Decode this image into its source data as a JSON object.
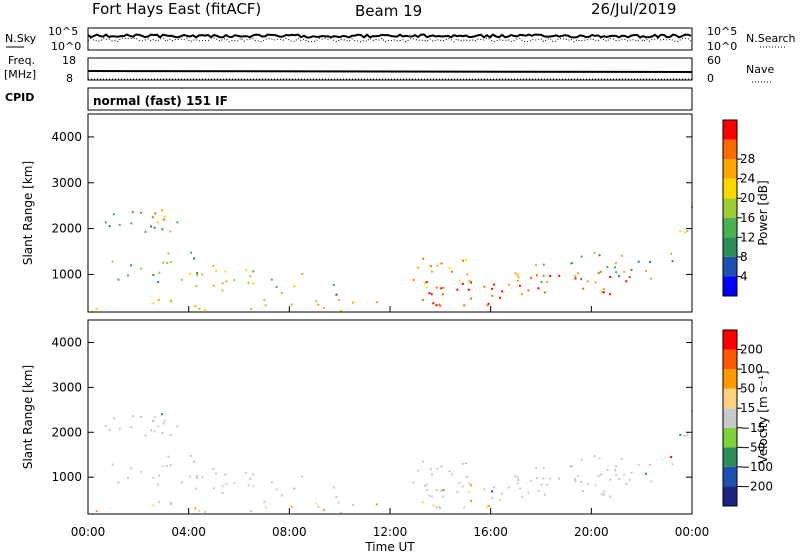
{
  "header": {
    "radar": "Fort Hays East (fitACF)",
    "beam": "Beam 19",
    "date": "26/Jul/2019"
  },
  "top_panel": {
    "left_label": "N.Sky",
    "right_label": "N.Search",
    "left_ticks": [
      "10^5",
      "10^0"
    ],
    "right_ticks": [
      "10^5",
      "10^0"
    ]
  },
  "freq_panel": {
    "left_label_1": "Freq.",
    "left_label_2": "[MHz]",
    "right_label": "Nave",
    "left_ticks": [
      "18",
      "8"
    ],
    "right_ticks": [
      "60",
      "0"
    ],
    "cpid_label": "CPID",
    "mode_text": "normal (fast) 151 IF"
  },
  "chart_data": [
    {
      "type": "heatmap",
      "name_in_figure": "Power",
      "ylabel": "Slant Range [km]",
      "xlabel": "Time UT",
      "xlim": [
        "00:00",
        "00:00"
      ],
      "ylim": [
        180,
        4500
      ],
      "y_ticks": [
        1000,
        2000,
        3000,
        4000
      ],
      "x_ticks": [
        "00:00",
        "04:00",
        "08:00",
        "12:00",
        "16:00",
        "20:00",
        "00:00"
      ],
      "colorbar": {
        "label": "Power [dB]",
        "ticks": [
          4,
          8,
          12,
          16,
          20,
          24,
          28
        ],
        "colors": [
          "#0000ff",
          "#1f4fb0",
          "#2e8b57",
          "#4caf50",
          "#9acd32",
          "#ffd700",
          "#ffa500",
          "#ff6a00",
          "#ff0000"
        ]
      }
    },
    {
      "type": "heatmap",
      "name_in_figure": "Velocity",
      "ylabel": "Slant Range [km]",
      "xlabel": "Time UT",
      "xlim": [
        "00:00",
        "00:00"
      ],
      "ylim": [
        180,
        4500
      ],
      "y_ticks": [
        1000,
        2000,
        3000,
        4000
      ],
      "x_ticks": [
        "00:00",
        "04:00",
        "08:00",
        "12:00",
        "16:00",
        "20:00",
        "00:00"
      ],
      "colorbar": {
        "label": "Velocity [m s⁻¹]",
        "ticks": [
          200,
          100,
          50,
          15,
          -15,
          -50,
          -100,
          -200
        ],
        "colors": [
          "#1a237e",
          "#1f4fb0",
          "#2e8b57",
          "#7fd13b",
          "#c8c8c8",
          "#ffd27f",
          "#ff9900",
          "#ff5a00",
          "#ff0000"
        ]
      }
    }
  ]
}
